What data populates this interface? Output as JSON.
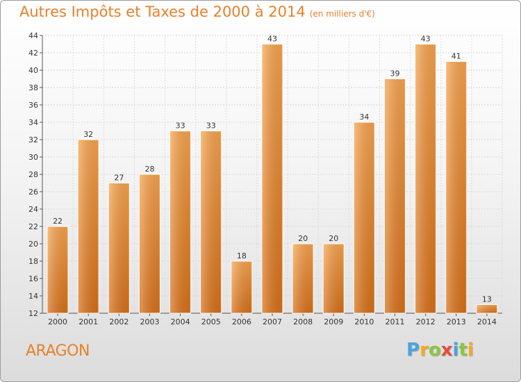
{
  "chart_data": {
    "type": "bar",
    "title": "Autres Impôts et Taxes de 2000 à 2014",
    "subtitle": "(en milliers d'€)",
    "categories": [
      "2000",
      "2001",
      "2002",
      "2003",
      "2004",
      "2005",
      "2006",
      "2007",
      "2008",
      "2009",
      "2010",
      "2011",
      "2012",
      "2013",
      "2014"
    ],
    "values": [
      22,
      32,
      27,
      28,
      33,
      33,
      18,
      43,
      20,
      20,
      34,
      39,
      43,
      41,
      13
    ],
    "ylim": [
      12,
      44
    ],
    "yticks": [
      12,
      14,
      16,
      18,
      20,
      22,
      24,
      26,
      28,
      30,
      32,
      34,
      36,
      38,
      40,
      42,
      44
    ],
    "grid": true,
    "bar_color": "#f29b3c"
  },
  "place_name": "ARAGON",
  "logo": {
    "letters": [
      "P",
      "r",
      "o",
      "x",
      "i",
      "t",
      "i"
    ],
    "colors": [
      "#4aa3df",
      "#f7a823",
      "#8cc63f",
      "#e84b3c",
      "#4aa3df",
      "#8cc63f",
      "#f7a823"
    ]
  }
}
